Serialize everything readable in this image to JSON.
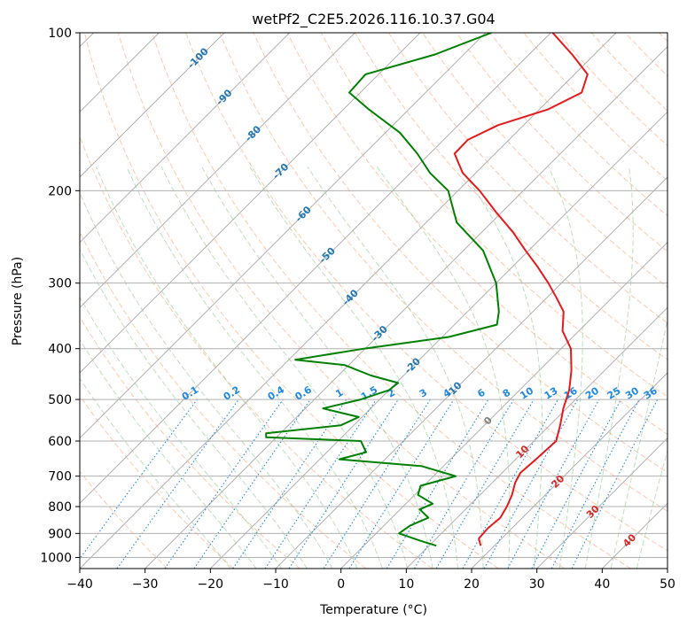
{
  "chart_data": {
    "type": "line",
    "title": "wetPf2_C2E5.2026.116.10.37.G04",
    "xlabel": "Temperature (°C)",
    "ylabel": "Pressure (hPa)",
    "xlim": [
      -40,
      50
    ],
    "ylim": [
      1050,
      100
    ],
    "y_scale": "log",
    "skew": true,
    "grid": true,
    "x_ticks": [
      -40,
      -30,
      -20,
      -10,
      0,
      10,
      20,
      30,
      40,
      50
    ],
    "y_ticks": [
      100,
      200,
      300,
      400,
      500,
      600,
      700,
      800,
      900,
      1000
    ],
    "series": [
      {
        "color": "#e41a1c",
        "pressure": [
          950,
          920,
          880,
          840,
          800,
          760,
          720,
          690,
          650,
          600,
          560,
          520,
          480,
          440,
          400,
          370,
          340,
          320,
          300,
          280,
          260,
          240,
          220,
          200,
          185,
          170,
          160,
          150,
          140,
          130,
          120,
          110,
          100
        ],
        "temperature": [
          17.9,
          16.5,
          16.3,
          16.6,
          15.9,
          14.9,
          13.5,
          12.8,
          13.1,
          13.4,
          11.6,
          9.5,
          7.6,
          4.9,
          1.5,
          -2.5,
          -5.3,
          -8.5,
          -12,
          -16,
          -20.5,
          -25.2,
          -30.8,
          -36.7,
          -42,
          -46.2,
          -46.3,
          -43.9,
          -38.7,
          -36.1,
          -38,
          -43.4,
          -49.7
        ]
      },
      {
        "color": "#008000",
        "pressure": [
          950,
          930,
          900,
          870,
          840,
          810,
          790,
          760,
          730,
          700,
          670,
          650,
          630,
          600,
          590,
          580,
          560,
          540,
          520,
          500,
          480,
          465,
          450,
          430,
          420,
          400,
          380,
          360,
          340,
          300,
          260,
          230,
          200,
          185,
          170,
          155,
          140,
          130,
          120,
          110,
          100
        ],
        "temperature": [
          11.1,
          8,
          3.5,
          4,
          5.6,
          3,
          4.1,
          0.5,
          -0.5,
          3.4,
          -3.3,
          -17,
          -14,
          -16.5,
          -31.6,
          -32.2,
          -22,
          -20.5,
          -27.3,
          -22.9,
          -20,
          -19.7,
          -25,
          -30.6,
          -39,
          -30.2,
          -19,
          -13.5,
          -15.2,
          -20,
          -27,
          -35.3,
          -41.5,
          -47,
          -51.9,
          -57.8,
          -66.1,
          -71.7,
          -72,
          -64.4,
          -59.1
        ]
      }
    ],
    "mixing_ratio_labels": [
      "0.1",
      "0.2",
      "0.4",
      "0.6",
      "1",
      "1.5",
      "2",
      "3",
      "4",
      "6",
      "8",
      "10",
      "13",
      "16",
      "20",
      "25",
      "30",
      "36"
    ],
    "temperature_labels": [
      "-100",
      "-90",
      "-80",
      "-70",
      "-60",
      "-50",
      "-40",
      "-30",
      "-20",
      "-10",
      "0",
      "10",
      "20",
      "30",
      "40"
    ],
    "colors": {
      "isotherm": "#b0b0b0",
      "dry_adiabat": "#ff9966",
      "moist_adiabat": "#66bb66",
      "mixing_ratio": "#1e88e5",
      "temp_label_cold": "#1f77b4",
      "temp_label_zero": "#808080",
      "temp_label_warm": "#d62728"
    }
  }
}
